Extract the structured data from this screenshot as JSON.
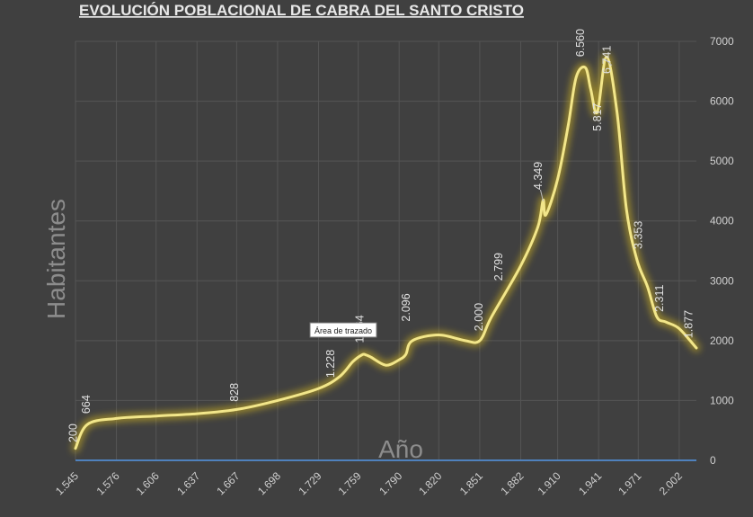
{
  "chart_data": {
    "type": "line",
    "title": "EVOLUCIÓN POBLACIONAL DE CABRA DEL SANTO CRISTO",
    "xlabel": "Año",
    "ylabel": "Habitantes",
    "ylim": [
      0,
      7000
    ],
    "yticks": [
      "0",
      "1000",
      "2000",
      "3000",
      "4000",
      "5000",
      "6000",
      "7000"
    ],
    "xticks": [
      "1.545",
      "1.576",
      "1.606",
      "1.637",
      "1.667",
      "1.698",
      "1.729",
      "1.759",
      "1.790",
      "1.820",
      "1.851",
      "1.882",
      "1.910",
      "1.941",
      "1.971",
      "2.002"
    ],
    "grid": true,
    "series": [
      {
        "x": [
          1545,
          1554,
          1576,
          1606,
          1637,
          1667,
          1698,
          1729,
          1745,
          1755,
          1762,
          1765,
          1769,
          1780,
          1790,
          1795,
          1800,
          1820,
          1840,
          1851,
          1860,
          1882,
          1895,
          1899,
          1901,
          1910,
          1918,
          1924,
          1931,
          1935,
          1940,
          1947,
          1955,
          1962,
          1970,
          1978,
          1985,
          1992,
          2002,
          2015
        ],
        "values": [
          200,
          600,
          700,
          740,
          780,
          850,
          1000,
          1200,
          1400,
          1650,
          1764,
          1760,
          1720,
          1590,
          1680,
          1770,
          2000,
          2096,
          2000,
          2000,
          2400,
          3250,
          3900,
          4349,
          4100,
          4700,
          5600,
          6400,
          6560,
          6200,
          5817,
          6741,
          5800,
          4200,
          3353,
          2900,
          2400,
          2311,
          2200,
          1877
        ]
      }
    ],
    "data_labels": [
      "200",
      "664",
      "828",
      "1.228",
      "1.764",
      "2.096",
      "2.000",
      "2.799",
      "4.349",
      "6.560",
      "5.817",
      "6.741",
      "3.353",
      "2.311",
      "1.877"
    ],
    "colors": {
      "line": "#f2e68a",
      "glow": "#e3c21b",
      "baseline": "#4f81bd",
      "grid": "#555555",
      "background": "#404040"
    },
    "tooltip": "Área de trazado"
  }
}
